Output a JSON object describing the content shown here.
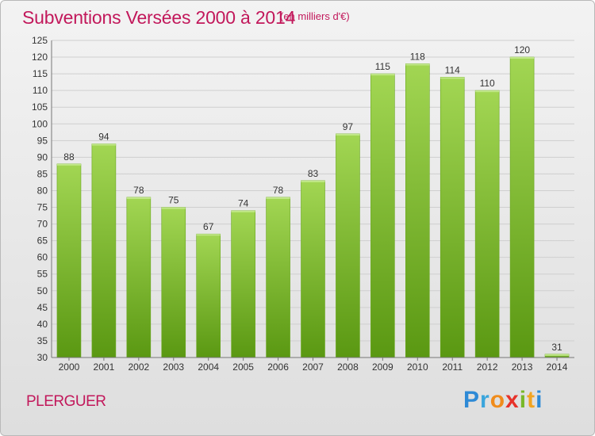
{
  "header": {
    "title": "Subventions Versées 2000 à 2014",
    "subtitle": "(en milliers d'€)"
  },
  "footer": {
    "place": "PLERGUER",
    "brand": "Proxiti"
  },
  "colors": {
    "title": "#c2185b",
    "bar_light": "#9fd44f",
    "bar_dark": "#5c9a12",
    "grid": "#c8c8c8",
    "background_top": "#f3f3f3",
    "background_bottom": "#dedede"
  },
  "chart_data": {
    "type": "bar",
    "title": "Subventions Versées 2000 à 2014",
    "subtitle": "(en milliers d'€)",
    "categories": [
      "2000",
      "2001",
      "2002",
      "2003",
      "2004",
      "2005",
      "2006",
      "2007",
      "2008",
      "2009",
      "2010",
      "2011",
      "2012",
      "2013",
      "2014"
    ],
    "values": [
      88,
      94,
      78,
      75,
      67,
      74,
      78,
      83,
      97,
      115,
      118,
      114,
      110,
      120,
      31
    ],
    "ylim": [
      30,
      125
    ],
    "ytick_step": 5,
    "grid": true,
    "data_labels": true,
    "xlabel": "",
    "ylabel": ""
  }
}
